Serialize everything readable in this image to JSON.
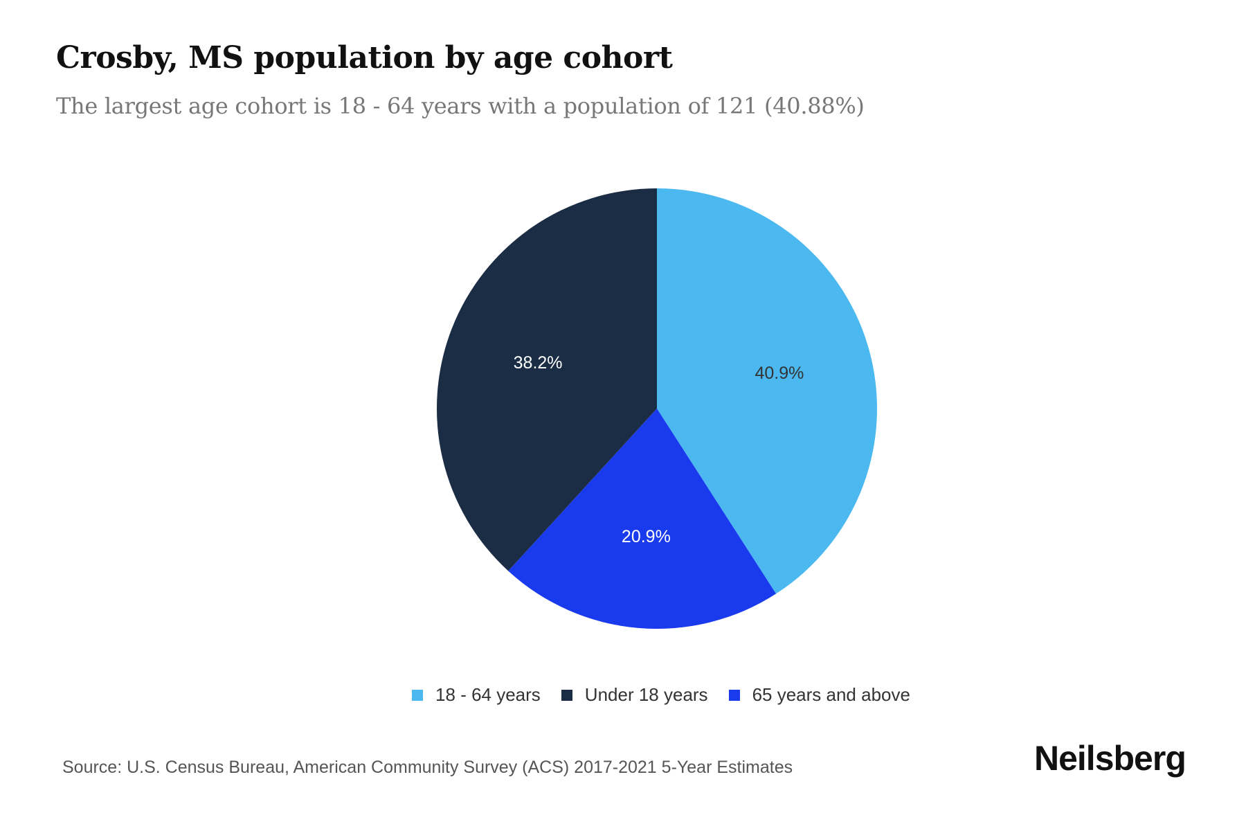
{
  "title": "Crosby, MS population by age cohort",
  "subtitle": "The largest age cohort is 18 - 64 years with a population of 121 (40.88%)",
  "source": "Source: U.S. Census Bureau, American Community Survey (ACS) 2017-2021 5-Year Estimates",
  "brand": "Neilsberg",
  "chart_data": {
    "type": "pie",
    "title": "Crosby, MS population by age cohort",
    "legend_position": "bottom",
    "slices": [
      {
        "label": "18 - 64 years",
        "value": 40.9,
        "display": "40.9%",
        "color": "#4BB8F0",
        "text_color": "#333333"
      },
      {
        "label": "65 years and above",
        "value": 20.9,
        "display": "20.9%",
        "color": "#1A3AEE",
        "text_color": "#ffffff"
      },
      {
        "label": "Under 18 years",
        "value": 38.2,
        "display": "38.2%",
        "color": "#1B2D45",
        "text_color": "#ffffff"
      }
    ],
    "legend": [
      {
        "label": "18 - 64 years",
        "color": "#4BB8F0"
      },
      {
        "label": "Under 18 years",
        "color": "#1B2D45"
      },
      {
        "label": "65 years and above",
        "color": "#1A3AEE"
      }
    ]
  }
}
